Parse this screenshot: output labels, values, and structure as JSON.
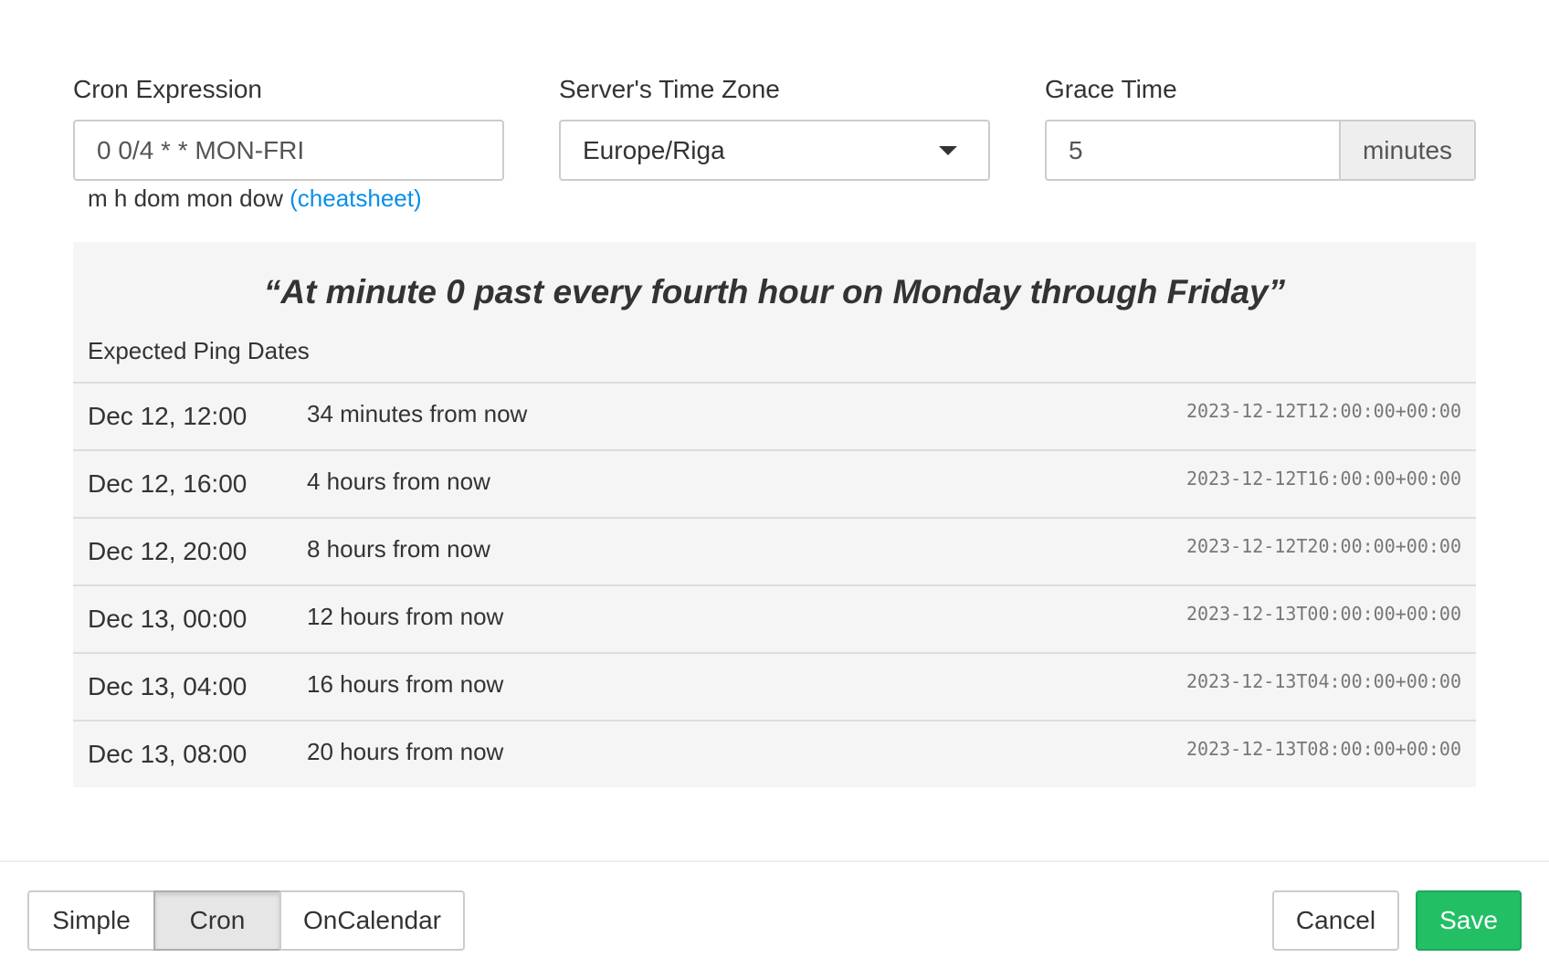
{
  "cron": {
    "label": "Cron Expression",
    "value": "0 0/4 * * MON-FRI",
    "hint": "m h dom mon dow",
    "cheatsheet": "(cheatsheet)"
  },
  "timezone": {
    "label": "Server's Time Zone",
    "value": "Europe/Riga",
    "icon": "caret-down-icon"
  },
  "grace": {
    "label": "Grace Time",
    "value": "5",
    "unit": "minutes"
  },
  "preview": {
    "description": "“At minute 0 past every fourth hour on Monday through Friday”",
    "heading": "Expected Ping Dates",
    "rows": [
      {
        "date": "Dec 12, 12:00",
        "relative": "34 minutes from now",
        "iso": "2023-12-12T12:00:00+00:00"
      },
      {
        "date": "Dec 12, 16:00",
        "relative": "4 hours from now",
        "iso": "2023-12-12T16:00:00+00:00"
      },
      {
        "date": "Dec 12, 20:00",
        "relative": "8 hours from now",
        "iso": "2023-12-12T20:00:00+00:00"
      },
      {
        "date": "Dec 13, 00:00",
        "relative": "12 hours from now",
        "iso": "2023-12-13T00:00:00+00:00"
      },
      {
        "date": "Dec 13, 04:00",
        "relative": "16 hours from now",
        "iso": "2023-12-13T04:00:00+00:00"
      },
      {
        "date": "Dec 13, 08:00",
        "relative": "20 hours from now",
        "iso": "2023-12-13T08:00:00+00:00"
      }
    ]
  },
  "footer": {
    "modes": [
      "Simple",
      "Cron",
      "OnCalendar"
    ],
    "active_mode": "Cron",
    "cancel": "Cancel",
    "save": "Save",
    "save_color": "#22bf65",
    "link_color": "#0a8fe6"
  }
}
